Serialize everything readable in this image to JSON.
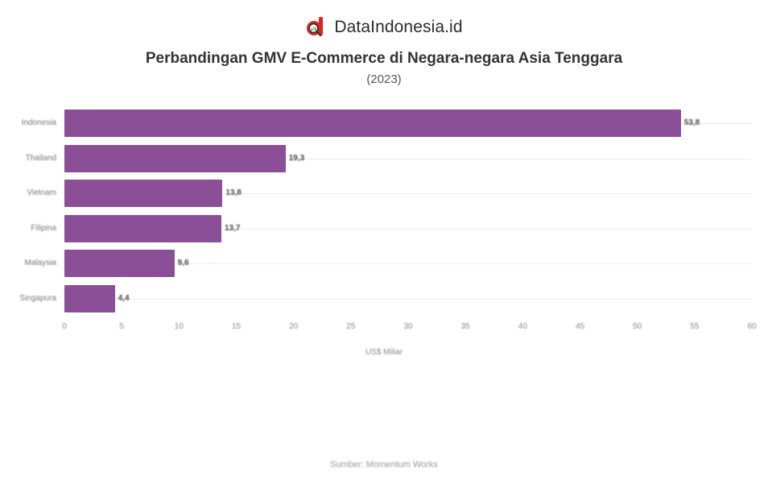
{
  "brand": {
    "name": "DataIndonesia.id",
    "logo_colors": {
      "primary": "#e02424",
      "lens": "#333333"
    }
  },
  "header": {
    "title": "Perbandingan GMV E-Commerce di Negara-negara Asia Tenggara",
    "subtitle": "(2023)"
  },
  "footer": {
    "source": "Sumber: Momentum Works"
  },
  "colors": {
    "bar": "#8b4f97",
    "grid": "#eeeeee"
  },
  "chart_data": {
    "type": "bar",
    "orientation": "horizontal",
    "title": "Perbandingan GMV E-Commerce di Negara-negara Asia Tenggara",
    "subtitle": "(2023)",
    "categories": [
      "Indonesia",
      "Thailand",
      "Vietnam",
      "Filipina",
      "Malaysia",
      "Singapura"
    ],
    "values": [
      53.8,
      19.3,
      13.8,
      13.7,
      9.6,
      4.4
    ],
    "value_labels": [
      "53,8",
      "19,3",
      "13,8",
      "13,7",
      "9,6",
      "4,4"
    ],
    "xlabel": "US$ Miliar",
    "ylabel": "",
    "xlim": [
      0,
      60
    ],
    "xticks": [
      "0",
      "5",
      "10",
      "15",
      "20",
      "25",
      "30",
      "35",
      "40",
      "45",
      "50",
      "55",
      "60"
    ],
    "grid": true,
    "legend": "none",
    "source": "Sumber: Momentum Works"
  }
}
